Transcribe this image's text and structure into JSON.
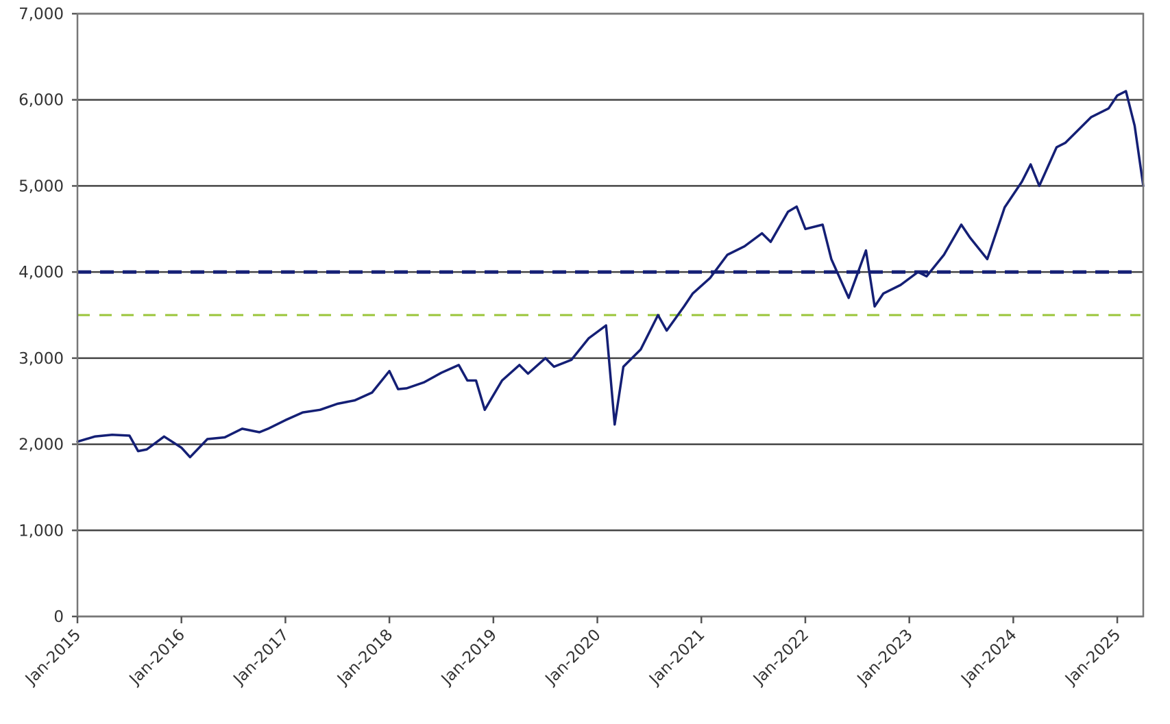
{
  "chart_data": {
    "type": "line",
    "title": "",
    "xlabel": "",
    "ylabel": "",
    "ylim": [
      0,
      7000
    ],
    "xlim": [
      "2015-01",
      "2025-04"
    ],
    "grid": "horizontal",
    "legend": "none",
    "y_ticks": [
      0,
      1000,
      2000,
      3000,
      4000,
      5000,
      6000,
      7000
    ],
    "y_tick_labels": [
      "0",
      "1,000",
      "2,000",
      "3,000",
      "4,000",
      "5,000",
      "6,000",
      "7,000"
    ],
    "x_tick_labels": [
      "Jan-2015",
      "Jan-2016",
      "Jan-2017",
      "Jan-2018",
      "Jan-2019",
      "Jan-2020",
      "Jan-2021",
      "Jan-2022",
      "Jan-2023",
      "Jan-2024",
      "Jan-2025"
    ],
    "series": [
      {
        "color": "#141f75",
        "x": [
          "2015-01",
          "2015-03",
          "2015-05",
          "2015-07",
          "2015-08",
          "2015-09",
          "2015-11",
          "2016-01",
          "2016-02",
          "2016-04",
          "2016-06",
          "2016-08",
          "2016-10",
          "2016-11",
          "2017-01",
          "2017-03",
          "2017-05",
          "2017-07",
          "2017-09",
          "2017-11",
          "2018-01",
          "2018-02",
          "2018-03",
          "2018-05",
          "2018-07",
          "2018-09",
          "2018-10",
          "2018-11",
          "2018-12",
          "2019-02",
          "2019-04",
          "2019-05",
          "2019-07",
          "2019-08",
          "2019-10",
          "2019-12",
          "2020-02",
          "2020-03",
          "2020-04",
          "2020-06",
          "2020-08",
          "2020-09",
          "2020-11",
          "2020-12",
          "2021-02",
          "2021-04",
          "2021-06",
          "2021-08",
          "2021-09",
          "2021-11",
          "2021-12",
          "2022-01",
          "2022-03",
          "2022-04",
          "2022-06",
          "2022-08",
          "2022-09",
          "2022-10",
          "2022-12",
          "2023-02",
          "2023-03",
          "2023-05",
          "2023-07",
          "2023-08",
          "2023-10",
          "2023-12",
          "2024-02",
          "2024-03",
          "2024-04",
          "2024-06",
          "2024-07",
          "2024-08",
          "2024-10",
          "2024-12",
          "2025-01",
          "2025-02",
          "2025-03",
          "2025-04"
        ],
        "y": [
          2030,
          2090,
          2110,
          2100,
          1920,
          1940,
          2090,
          1960,
          1850,
          2060,
          2080,
          2180,
          2140,
          2180,
          2280,
          2370,
          2400,
          2470,
          2510,
          2600,
          2850,
          2640,
          2650,
          2720,
          2830,
          2920,
          2740,
          2740,
          2400,
          2740,
          2920,
          2820,
          3000,
          2900,
          2980,
          3230,
          3380,
          2230,
          2900,
          3100,
          3500,
          3320,
          3600,
          3750,
          3930,
          4200,
          4300,
          4450,
          4350,
          4700,
          4760,
          4500,
          4550,
          4150,
          3700,
          4250,
          3600,
          3750,
          3850,
          4000,
          3950,
          4200,
          4550,
          4400,
          4150,
          4750,
          5050,
          5250,
          5000,
          5450,
          5500,
          5600,
          5800,
          5900,
          6050,
          6100,
          5700,
          5000
        ]
      }
    ],
    "reference_lines": [
      {
        "y": 4000,
        "color": "#141f75",
        "style": "dashed"
      },
      {
        "y": 3500,
        "color": "#9ac53a",
        "style": "dashed"
      }
    ]
  }
}
